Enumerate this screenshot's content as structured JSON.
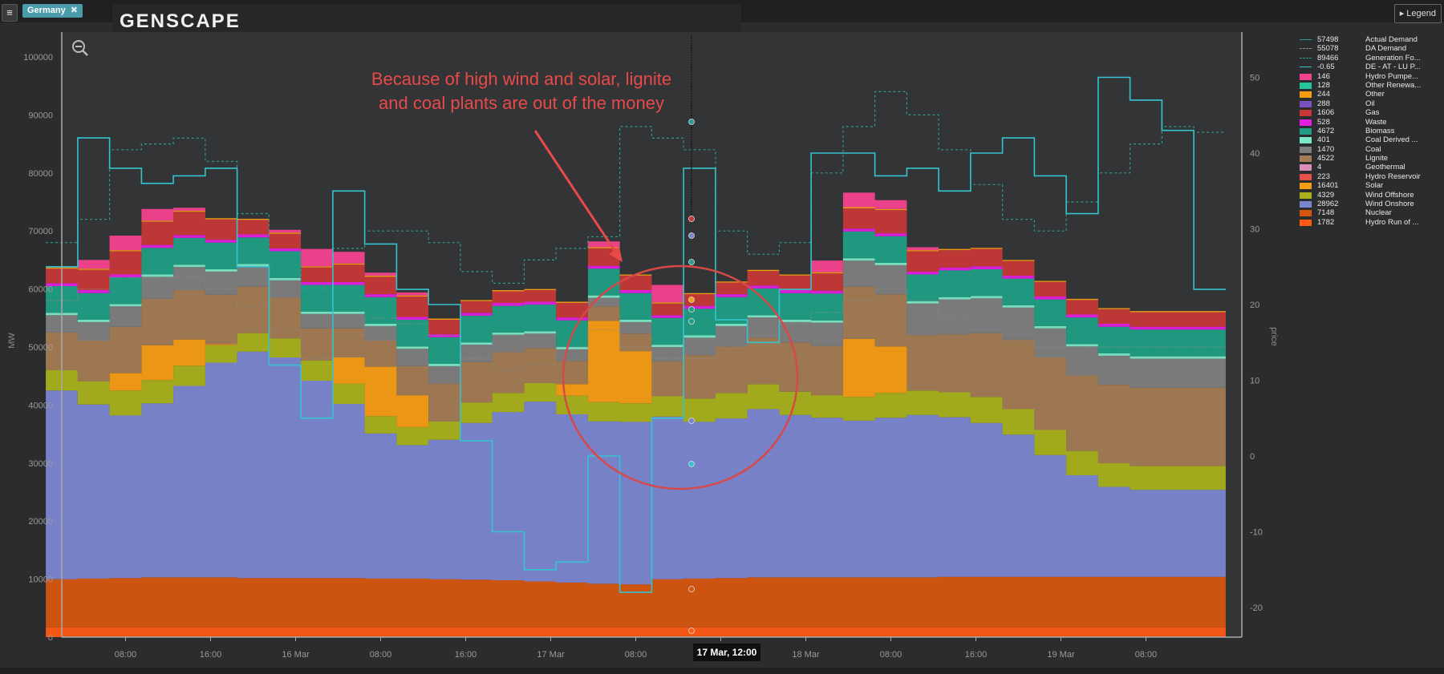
{
  "header": {
    "country": "Germany",
    "country_close": "✖",
    "logo": "GENSCAPE",
    "legend_button": "Legend",
    "menu_icon": "hamburger-icon"
  },
  "annotation": {
    "line1": "Because of high wind and solar, lignite",
    "line2": "and coal plants are out of the money"
  },
  "tooltip": "17 Mar, 12:00",
  "colors": {
    "background": "#2b2c2e",
    "annotation": "#e84a4a",
    "price": "#35c3d0"
  },
  "legend": [
    {
      "value": "57498",
      "name": "Actual Demand",
      "color": "#2f9a8e",
      "style": "line"
    },
    {
      "value": "55078",
      "name": "DA Demand",
      "color": "#8a8a8a",
      "style": "dash"
    },
    {
      "value": "89466",
      "name": "Generation Fo...",
      "color": "#2f9a8e",
      "style": "dash"
    },
    {
      "value": "-0.65",
      "name": "DE - AT - LU P...",
      "color": "#35c3d0",
      "style": "line"
    },
    {
      "value": "146",
      "name": "Hydro Pumpe...",
      "color": "#f5428f",
      "style": "swatch"
    },
    {
      "value": "128",
      "name": "Other Renewa...",
      "color": "#27c49c",
      "style": "swatch"
    },
    {
      "value": "244",
      "name": "Other",
      "color": "#f59d14",
      "style": "swatch"
    },
    {
      "value": "288",
      "name": "Oil",
      "color": "#7a4fc0",
      "style": "swatch"
    },
    {
      "value": "1606",
      "name": "Gas",
      "color": "#c63838",
      "style": "swatch"
    },
    {
      "value": "528",
      "name": "Waste",
      "color": "#e11ee1",
      "style": "swatch"
    },
    {
      "value": "4672",
      "name": "Biomass",
      "color": "#1f9e84",
      "style": "swatch"
    },
    {
      "value": "401",
      "name": "Coal Derived ...",
      "color": "#7de8c8",
      "style": "swatch"
    },
    {
      "value": "1470",
      "name": "Coal",
      "color": "#7e7e7e",
      "style": "swatch"
    },
    {
      "value": "4522",
      "name": "Lignite",
      "color": "#a37b54",
      "style": "swatch"
    },
    {
      "value": "4",
      "name": "Geothermal",
      "color": "#d88fb5",
      "style": "swatch"
    },
    {
      "value": "223",
      "name": "Hydro Reservoir",
      "color": "#e6524a",
      "style": "swatch"
    },
    {
      "value": "16401",
      "name": "Solar",
      "color": "#f59d14",
      "style": "swatch"
    },
    {
      "value": "4329",
      "name": "Wind Offshore",
      "color": "#a8b01c",
      "style": "swatch"
    },
    {
      "value": "28962",
      "name": "Wind Onshore",
      "color": "#7b86d0",
      "style": "swatch"
    },
    {
      "value": "7148",
      "name": "Nuclear",
      "color": "#d65510",
      "style": "swatch"
    },
    {
      "value": "1782",
      "name": "Hydro Run of ...",
      "color": "#ff5a14",
      "style": "swatch"
    }
  ],
  "chart_data": {
    "type": "area",
    "ylabel": "MW",
    "y2label": "price",
    "ylim": [
      0,
      100000
    ],
    "y2lim": [
      -20,
      50
    ],
    "yticks": [
      "0",
      "10000",
      "20000",
      "30000",
      "40000",
      "50000",
      "60000",
      "70000",
      "80000",
      "90000",
      "100000"
    ],
    "y2ticks": [
      "-20",
      "-10",
      "0",
      "10",
      "20",
      "30",
      "40",
      "50"
    ],
    "xticks": [
      "08:00",
      "16:00",
      "16 Mar",
      "08:00",
      "16:00",
      "17 Mar",
      "08:00",
      "16:00",
      "18 Mar",
      "08:00",
      "16:00",
      "19 Mar",
      "08:00"
    ],
    "xrange": [
      "15 Mar 02:00",
      "19 Mar 12:00"
    ],
    "x": [
      2,
      5,
      8,
      11,
      14,
      17,
      20,
      23,
      26,
      29,
      32,
      35,
      38,
      41,
      44,
      47,
      50,
      53,
      56,
      59,
      62,
      65,
      68,
      71,
      74,
      77,
      80,
      83,
      86,
      89,
      92,
      95,
      98,
      101,
      104,
      107,
      110
    ],
    "x_unit": "hours since 15 Mar 00:00",
    "stack_order": [
      "Hydro Run of River",
      "Nuclear",
      "Wind Onshore",
      "Wind Offshore",
      "Solar",
      "Lignite",
      "Coal",
      "Coal Derived",
      "Biomass",
      "Waste",
      "Gas",
      "Other",
      "Hydro Pumped"
    ],
    "series": [
      {
        "name": "Hydro Run of River",
        "color": "#ff5a14",
        "values": [
          1700,
          1700,
          1700,
          1700,
          1700,
          1700,
          1700,
          1700,
          1700,
          1700,
          1700,
          1700,
          1700,
          1700,
          1700,
          1700,
          1700,
          1700,
          1700,
          1700,
          1700,
          1700,
          1700,
          1700,
          1700,
          1700,
          1700,
          1700,
          1700,
          1700,
          1700,
          1700,
          1700,
          1700,
          1700,
          1700,
          1700
        ]
      },
      {
        "name": "Nuclear",
        "color": "#d65510",
        "values": [
          8300,
          8400,
          8500,
          8600,
          8600,
          8600,
          8500,
          8500,
          8500,
          8500,
          8400,
          8400,
          8300,
          8200,
          8100,
          7900,
          7700,
          7500,
          7400,
          8300,
          8400,
          8500,
          8600,
          8600,
          8600,
          8600,
          8600,
          8600,
          8700,
          8700,
          8700,
          8700,
          8700,
          8700,
          8700,
          8700,
          8700
        ]
      },
      {
        "name": "Wind Onshore",
        "color": "#7b86d0",
        "values": [
          32500,
          30000,
          28000,
          30000,
          33000,
          37000,
          39000,
          38000,
          34000,
          30000,
          25000,
          23000,
          24000,
          27000,
          29000,
          31000,
          29000,
          28000,
          28000,
          28000,
          27000,
          27500,
          29000,
          28000,
          27500,
          27000,
          27500,
          28000,
          27500,
          26500,
          24500,
          21000,
          17500,
          15500,
          15000,
          15000,
          15000
        ]
      },
      {
        "name": "Wind Offshore",
        "color": "#a8b01c",
        "values": [
          3500,
          4000,
          4300,
          4000,
          3500,
          3000,
          3200,
          3300,
          3500,
          3500,
          3000,
          3100,
          3200,
          3500,
          3300,
          3200,
          3200,
          3300,
          3200,
          3500,
          4000,
          4400,
          4300,
          4000,
          3900,
          4100,
          4300,
          4200,
          4300,
          4500,
          4400,
          4300,
          4200,
          4100,
          4100,
          4100,
          4100
        ]
      },
      {
        "name": "Solar",
        "color": "#f59d14",
        "values": [
          0,
          0,
          3000,
          6000,
          4500,
          200,
          0,
          0,
          0,
          4500,
          8500,
          5500,
          0,
          0,
          0,
          0,
          2000,
          14000,
          9000,
          0,
          0,
          0,
          0,
          0,
          0,
          10000,
          8000,
          0,
          0,
          0,
          0,
          0,
          0,
          0,
          0,
          0,
          0
        ]
      },
      {
        "name": "Lignite",
        "color": "#a37b54",
        "values": [
          6500,
          7000,
          8000,
          8000,
          8500,
          8500,
          8000,
          7000,
          5500,
          5000,
          4500,
          5000,
          6500,
          7000,
          7000,
          6000,
          4000,
          2500,
          3000,
          6000,
          7500,
          8000,
          8000,
          8500,
          8500,
          9000,
          9000,
          9500,
          10000,
          11000,
          12000,
          12500,
          13000,
          13500,
          13500,
          13500,
          13500
        ]
      },
      {
        "name": "Coal",
        "color": "#7e7e7e",
        "values": [
          3000,
          3200,
          3500,
          3800,
          4000,
          4000,
          3500,
          3000,
          2500,
          2500,
          2500,
          3000,
          3000,
          3000,
          3000,
          2500,
          2000,
          1500,
          2000,
          2500,
          3000,
          3500,
          3500,
          3500,
          4000,
          4500,
          5000,
          5500,
          6000,
          6000,
          5500,
          5000,
          5000,
          5000,
          5000,
          5000,
          5000
        ]
      },
      {
        "name": "Coal Derived",
        "color": "#7de8c8",
        "values": [
          400,
          400,
          400,
          400,
          400,
          400,
          400,
          400,
          400,
          400,
          400,
          400,
          400,
          400,
          400,
          400,
          400,
          400,
          400,
          400,
          400,
          400,
          400,
          400,
          400,
          400,
          400,
          400,
          400,
          400,
          400,
          400,
          400,
          400,
          400,
          400,
          400
        ]
      },
      {
        "name": "Biomass",
        "color": "#1f9e84",
        "values": [
          4600,
          4600,
          4600,
          4600,
          4600,
          4600,
          4600,
          4600,
          4600,
          4600,
          4600,
          4600,
          4600,
          4600,
          4600,
          4600,
          4600,
          4600,
          4600,
          4600,
          4600,
          4600,
          4600,
          4600,
          4600,
          4600,
          4600,
          4600,
          4600,
          4600,
          4600,
          4600,
          4600,
          4600,
          4600,
          4600,
          4600
        ]
      },
      {
        "name": "Waste",
        "color": "#e11ee1",
        "values": [
          500,
          500,
          500,
          500,
          500,
          500,
          500,
          500,
          500,
          500,
          500,
          500,
          500,
          500,
          500,
          500,
          500,
          500,
          500,
          500,
          500,
          500,
          500,
          500,
          500,
          500,
          500,
          500,
          500,
          500,
          500,
          500,
          500,
          500,
          500,
          500,
          500
        ]
      },
      {
        "name": "Gas",
        "color": "#c63838",
        "values": [
          2500,
          3500,
          4000,
          4000,
          4000,
          3500,
          2500,
          2500,
          2500,
          3000,
          3000,
          3500,
          2500,
          2000,
          2000,
          2000,
          2500,
          3000,
          2500,
          2000,
          2000,
          2000,
          2500,
          2500,
          3000,
          3500,
          4000,
          3500,
          3000,
          3000,
          2500,
          2500,
          2500,
          2500,
          2500,
          2500,
          2500
        ]
      },
      {
        "name": "Other",
        "color": "#f59d14",
        "values": [
          200,
          200,
          200,
          200,
          200,
          200,
          200,
          200,
          200,
          200,
          200,
          200,
          200,
          200,
          200,
          200,
          200,
          200,
          200,
          200,
          200,
          200,
          200,
          200,
          200,
          200,
          200,
          200,
          200,
          200,
          200,
          200,
          200,
          200,
          200,
          200,
          200
        ]
      },
      {
        "name": "Hydro Pumped",
        "color": "#f5428f",
        "values": [
          0,
          1500,
          2500,
          2000,
          500,
          0,
          0,
          500,
          3000,
          2000,
          500,
          500,
          0,
          0,
          0,
          0,
          0,
          1000,
          0,
          3000,
          0,
          0,
          0,
          0,
          2000,
          2500,
          1500,
          500,
          0,
          0,
          0,
          0,
          0,
          0,
          0,
          0,
          0
        ]
      },
      {
        "name": "Generation Fo...",
        "color": "#2f9a8e",
        "type": "dashed-line",
        "values": [
          68000,
          72000,
          84000,
          85000,
          86000,
          82000,
          73000,
          64000,
          60000,
          67000,
          70000,
          70000,
          68000,
          63000,
          61000,
          65000,
          67000,
          69000,
          88000,
          86000,
          84000,
          70000,
          66000,
          68000,
          80000,
          88000,
          94000,
          90000,
          84000,
          78000,
          72000,
          70000,
          75000,
          80000,
          85000,
          88000,
          87000
        ]
      },
      {
        "name": "DA Demand",
        "color": "#8a8a8a",
        "type": "dotted-line",
        "values": [
          58000,
          60000,
          62000,
          62000,
          62000,
          60000,
          57000,
          53000,
          48000,
          52000,
          55000,
          54000,
          52000,
          48000,
          46000,
          47000,
          50000,
          53000,
          50000,
          48000,
          48000,
          50000,
          52000,
          54000,
          56000,
          58000,
          60000,
          58000,
          55000,
          53000,
          51000,
          50000,
          50000,
          50000,
          50000,
          50000,
          50000
        ]
      },
      {
        "name": "DE - AT - LU P...",
        "color": "#35c3d0",
        "type": "line",
        "axis": "y2",
        "values": [
          25,
          42,
          38,
          36,
          37,
          38,
          25,
          12,
          5,
          35,
          28,
          22,
          20,
          2,
          -10,
          -15,
          -14,
          0,
          -18,
          5,
          38,
          18,
          15,
          22,
          40,
          40,
          37,
          38,
          35,
          40,
          42,
          37,
          32,
          50,
          47,
          43,
          22
        ]
      }
    ],
    "tooltip_x": "17 Mar, 12:00"
  }
}
